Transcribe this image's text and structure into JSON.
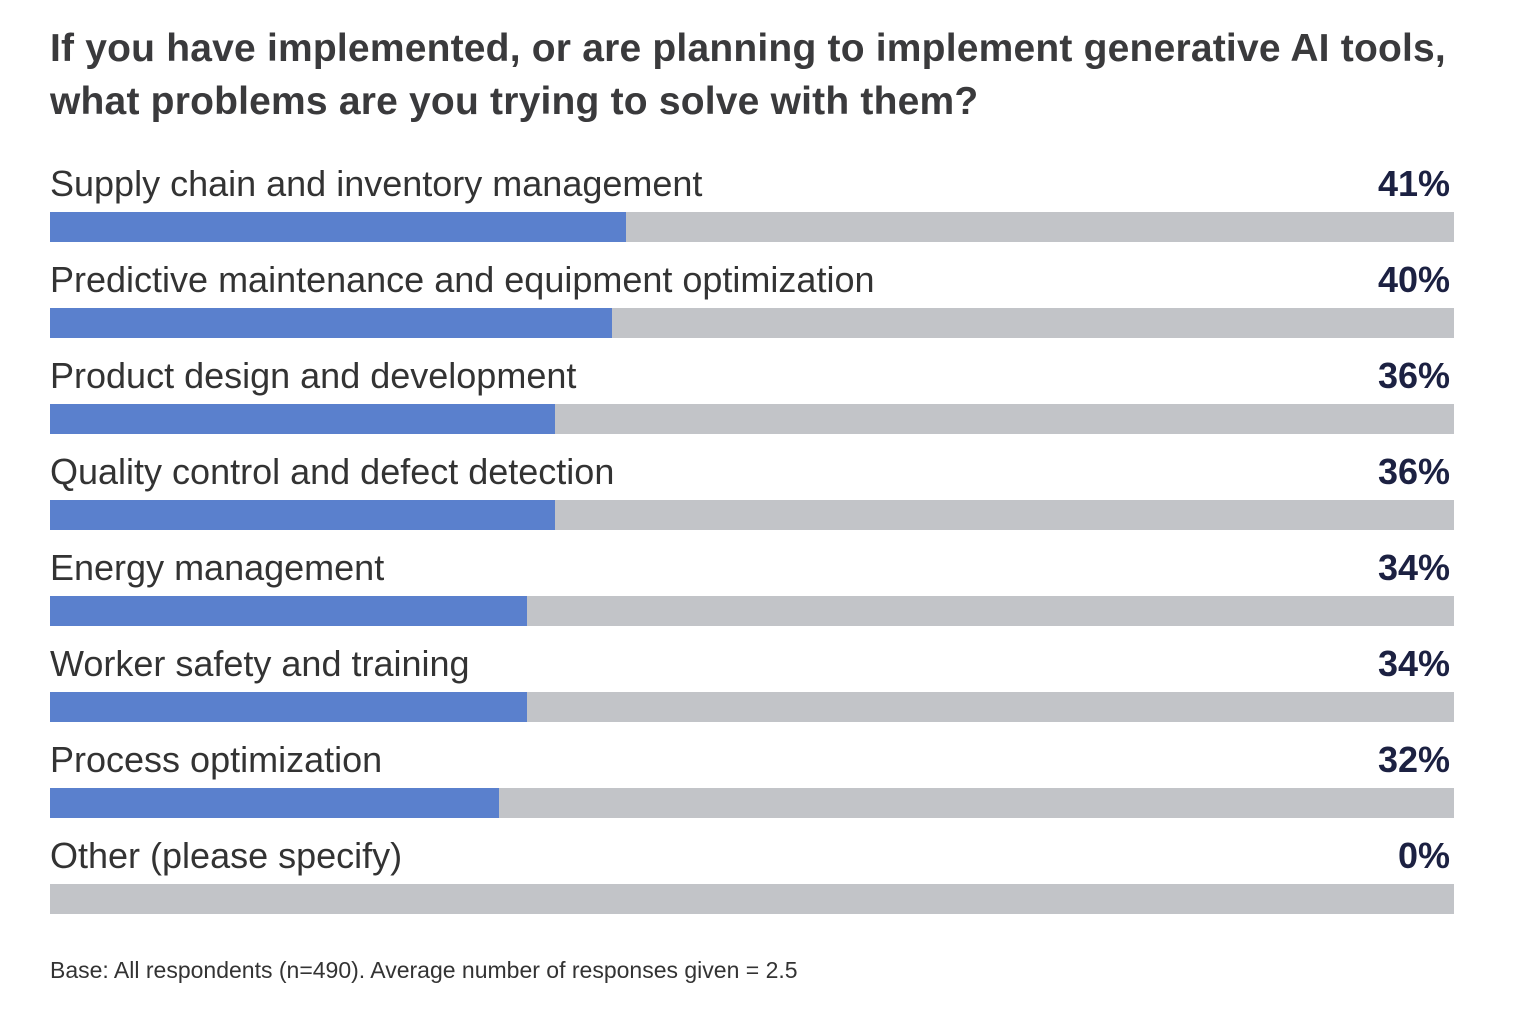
{
  "chart_data": {
    "type": "bar",
    "orientation": "horizontal",
    "title": "If you have implemented, or are planning to implement generative AI tools, what problems are you trying to solve with them?",
    "categories": [
      "Supply chain and inventory management",
      "Predictive maintenance and equipment optimization",
      "Product design and development",
      "Quality control and defect detection",
      "Energy management",
      "Worker safety and training",
      "Process optimization",
      "Other (please specify)"
    ],
    "values": [
      41,
      40,
      36,
      36,
      34,
      34,
      32,
      0
    ],
    "value_labels": [
      "41%",
      "40%",
      "36%",
      "36%",
      "34%",
      "34%",
      "32%",
      "0%"
    ],
    "xlim": [
      0,
      100
    ],
    "unit": "%",
    "grid": false,
    "legend": "none",
    "footnote": "Base: All respondents (n=490). Average number of responses given = 2.5",
    "colors": {
      "fill": "#5a80cd",
      "track": "#c2c4c8",
      "value_text": "#1c2142",
      "label_text": "#333333",
      "title_text": "#3a3a3c"
    }
  }
}
